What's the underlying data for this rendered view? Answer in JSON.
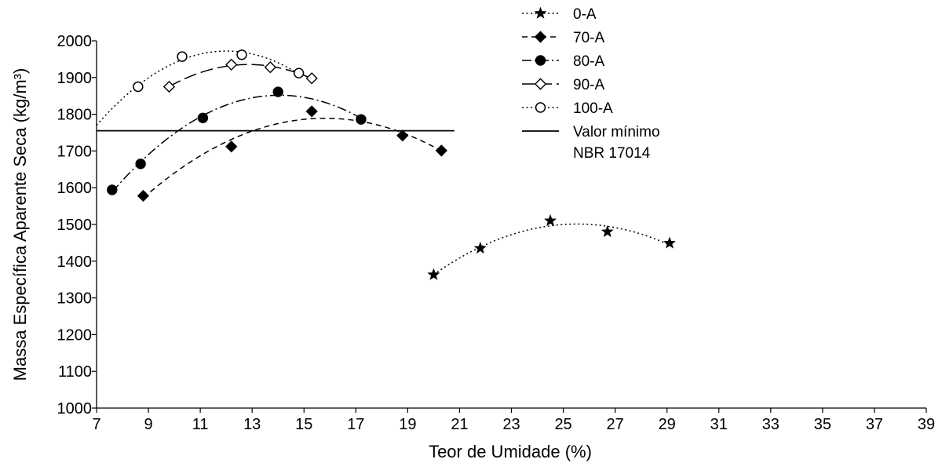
{
  "chart_data": {
    "type": "scatter",
    "xlabel": "Teor de Umidade (%)",
    "ylabel": "Massa Específica Aparente Seca (kg/m³)",
    "xlim": [
      7,
      39
    ],
    "ylim": [
      1000,
      2000
    ],
    "xticks": [
      7,
      9,
      11,
      13,
      15,
      17,
      19,
      21,
      23,
      25,
      27,
      29,
      31,
      33,
      35,
      37,
      39
    ],
    "yticks": [
      1000,
      1100,
      1200,
      1300,
      1400,
      1500,
      1600,
      1700,
      1800,
      1900,
      2000
    ],
    "grid": false,
    "legend_position": "top-right",
    "series": [
      {
        "name": "0-A",
        "marker": "star",
        "line_style": "dotted",
        "color": "#000000",
        "points": [
          [
            20.0,
            1363
          ],
          [
            21.8,
            1435
          ],
          [
            24.5,
            1510
          ],
          [
            26.7,
            1480
          ],
          [
            29.1,
            1449
          ]
        ],
        "trend_range": [
          20.0,
          29.1
        ]
      },
      {
        "name": "70-A",
        "marker": "diamond-filled",
        "line_style": "dashed",
        "color": "#000000",
        "points": [
          [
            8.8,
            1578
          ],
          [
            12.2,
            1712
          ],
          [
            15.3,
            1808
          ],
          [
            18.8,
            1742
          ],
          [
            20.3,
            1701
          ]
        ],
        "trend_range": [
          8.8,
          20.3
        ]
      },
      {
        "name": "80-A",
        "marker": "circle-filled",
        "line_style": "dash-dot",
        "color": "#000000",
        "points": [
          [
            7.6,
            1594
          ],
          [
            8.7,
            1665
          ],
          [
            11.1,
            1790
          ],
          [
            14.0,
            1861
          ],
          [
            17.2,
            1786
          ]
        ],
        "trend_range": [
          7.6,
          17.2
        ]
      },
      {
        "name": "90-A",
        "marker": "diamond-open",
        "line_style": "long-dash",
        "color": "#000000",
        "points": [
          [
            9.8,
            1875
          ],
          [
            12.2,
            1935
          ],
          [
            13.7,
            1928
          ],
          [
            15.3,
            1898
          ]
        ],
        "trend_range": [
          9.8,
          15.3
        ]
      },
      {
        "name": "100-A",
        "marker": "circle-open",
        "line_style": "dotted",
        "color": "#000000",
        "points": [
          [
            8.6,
            1875
          ],
          [
            10.3,
            1957
          ],
          [
            12.6,
            1962
          ],
          [
            14.8,
            1912
          ]
        ],
        "trend_range": [
          7.0,
          14.8
        ]
      }
    ],
    "reference_line": {
      "label_line1": "Valor mínimo",
      "label_line2": "NBR 17014",
      "value": 1755,
      "x_range": [
        7,
        20.8
      ]
    }
  }
}
